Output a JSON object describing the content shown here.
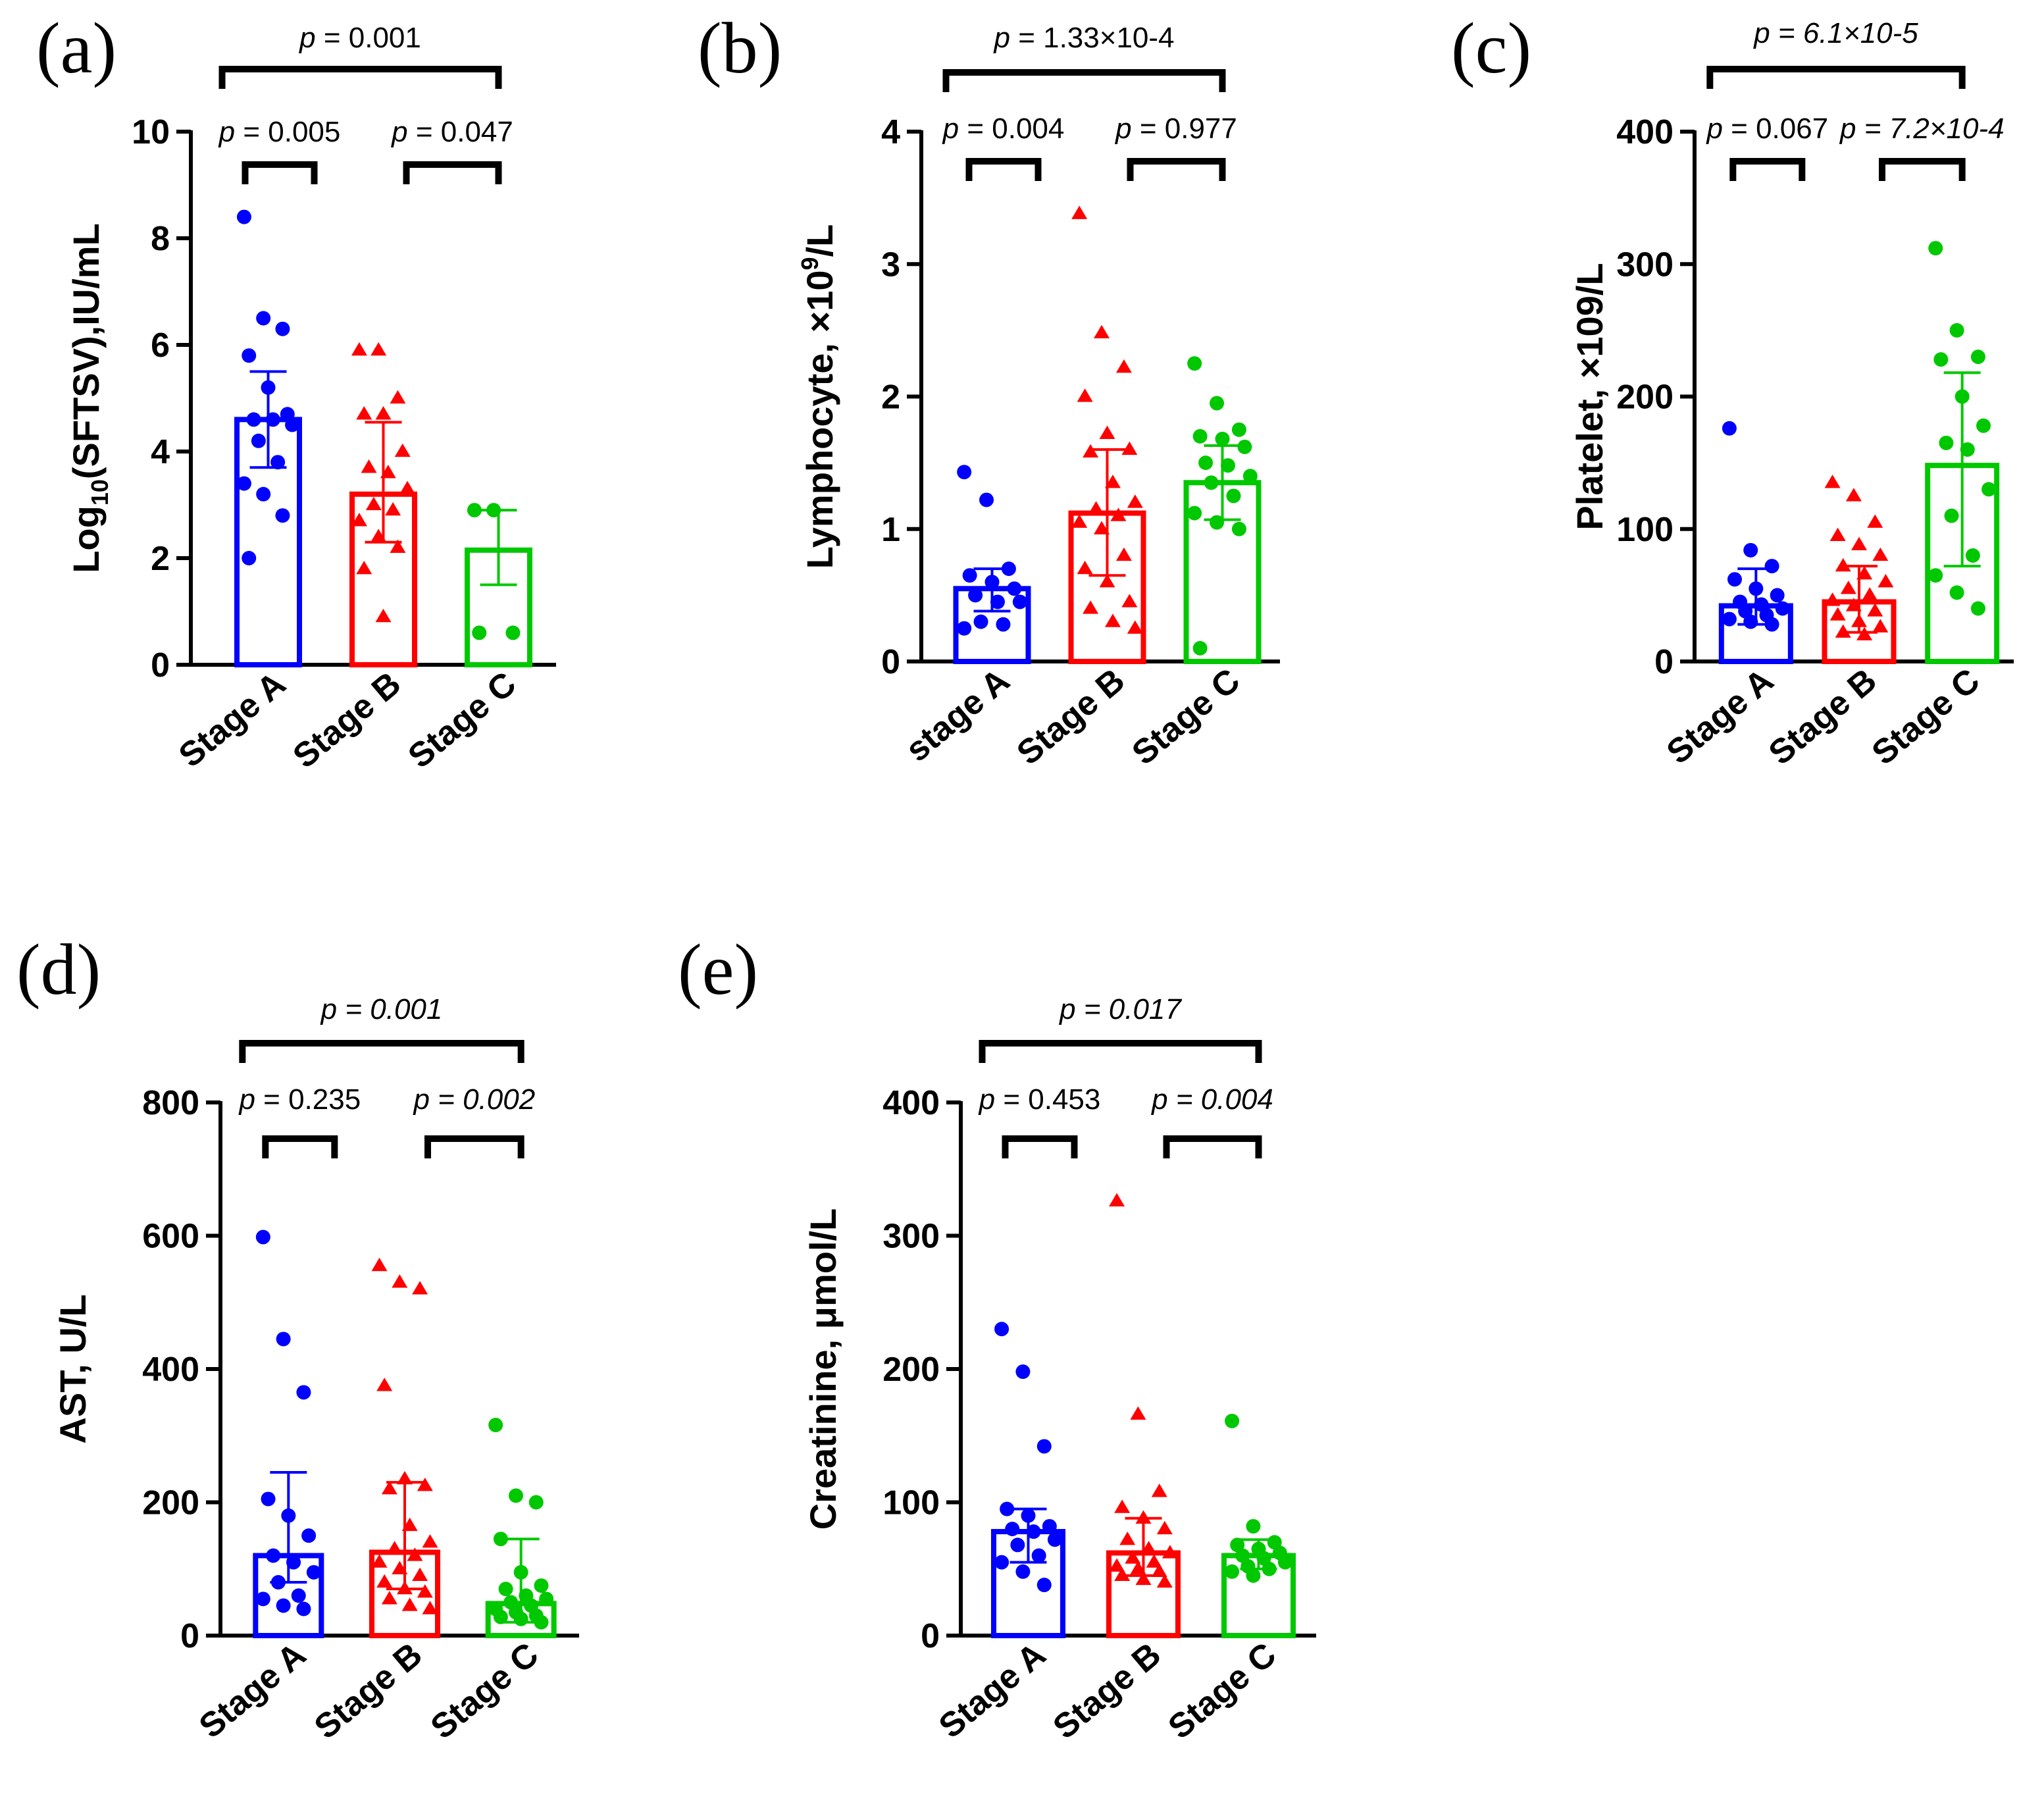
{
  "figure": {
    "description_color_legend": {
      "stage_a": "#0000ff",
      "stage_b": "#ff0000",
      "stage_c": "#00c800"
    }
  },
  "chart_data": [
    {
      "id": "a",
      "type": "bar",
      "panel_label": "(a)",
      "ylabel_parts": [
        "Log",
        "10",
        "(SFTSV),IU/mL"
      ],
      "ylim": [
        0,
        10
      ],
      "yticks": [
        "0",
        "2",
        "4",
        "6",
        "8",
        "10"
      ],
      "categories": [
        "Stage A",
        "Stage B",
        "Stage C"
      ],
      "markers": [
        "circle",
        "triangle",
        "circle"
      ],
      "colors": [
        "#0000ff",
        "#ff0000",
        "#00c800"
      ],
      "bar_means": [
        4.6,
        3.2,
        2.15
      ],
      "error_bars": [
        [
          3.7,
          5.5
        ],
        [
          2.3,
          4.55
        ],
        [
          1.5,
          2.9
        ]
      ],
      "points": [
        [
          8.4,
          6.5,
          6.3,
          5.8,
          5.2,
          4.7,
          4.6,
          4.6,
          4.5,
          4.2,
          3.8,
          3.4,
          3.2,
          2.8,
          2.0
        ],
        [
          5.9,
          5.9,
          5.0,
          4.7,
          4.7,
          4.0,
          3.7,
          3.6,
          3.3,
          3.0,
          2.9,
          2.7,
          2.4,
          2.2,
          1.8,
          0.9
        ],
        [
          2.9,
          2.9,
          0.6,
          0.6
        ]
      ],
      "comparisons": [
        {
          "label": "p = 0.001",
          "italic": false,
          "from": 0,
          "to": 2,
          "level": "top"
        },
        {
          "label": "p = 0.005",
          "italic": false,
          "from": 0,
          "to": 1,
          "level": "low"
        },
        {
          "label": "p = 0.047",
          "italic": false,
          "from": 1,
          "to": 2,
          "level": "low"
        }
      ]
    },
    {
      "id": "b",
      "type": "bar",
      "panel_label": "(b)",
      "ylabel_parts": [
        "Lymphocyte, ×10",
        "9",
        "/L"
      ],
      "ylim": [
        0,
        4
      ],
      "yticks": [
        "0",
        "1",
        "2",
        "3",
        "4"
      ],
      "categories": [
        "stage A",
        "Stage B",
        "Stage C"
      ],
      "markers": [
        "circle",
        "triangle",
        "circle"
      ],
      "colors": [
        "#0000ff",
        "#ff0000",
        "#00c800"
      ],
      "bar_means": [
        0.55,
        1.12,
        1.35
      ],
      "error_bars": [
        [
          0.38,
          0.7
        ],
        [
          0.65,
          1.6
        ],
        [
          1.07,
          1.63
        ]
      ],
      "points": [
        [
          1.43,
          1.22,
          0.7,
          0.65,
          0.6,
          0.55,
          0.5,
          0.45,
          0.45,
          0.3,
          0.28,
          0.25
        ],
        [
          3.38,
          2.48,
          2.22,
          2.0,
          1.72,
          1.6,
          1.58,
          1.35,
          1.2,
          1.15,
          1.1,
          1.05,
          1.0,
          0.8,
          0.7,
          0.6,
          0.45,
          0.4,
          0.3,
          0.25
        ],
        [
          2.25,
          1.95,
          1.75,
          1.7,
          1.68,
          1.62,
          1.5,
          1.48,
          1.4,
          1.35,
          1.25,
          1.12,
          1.05,
          1.0,
          0.1
        ]
      ],
      "comparisons": [
        {
          "label": "p = 1.33×10-4",
          "italic": false,
          "from": 0,
          "to": 2,
          "level": "top"
        },
        {
          "label": "p = 0.004",
          "italic": false,
          "from": 0,
          "to": 1,
          "level": "low"
        },
        {
          "label": "p = 0.977",
          "italic": false,
          "from": 1,
          "to": 2,
          "level": "low"
        }
      ]
    },
    {
      "id": "c",
      "type": "bar",
      "panel_label": "(c)",
      "ylabel_parts": [
        "Platelet, ×109/L",
        "",
        ""
      ],
      "ylim": [
        0,
        400
      ],
      "yticks": [
        "0",
        "100",
        "200",
        "300",
        "400"
      ],
      "categories": [
        "Stage A",
        "Stage B",
        "Stage C"
      ],
      "markers": [
        "circle",
        "triangle",
        "circle"
      ],
      "colors": [
        "#0000ff",
        "#ff0000",
        "#00c800"
      ],
      "bar_means": [
        42,
        45,
        148
      ],
      "error_bars": [
        [
          28,
          70
        ],
        [
          22,
          72
        ],
        [
          72,
          218
        ]
      ],
      "points": [
        [
          176,
          84,
          72,
          62,
          55,
          50,
          45,
          43,
          40,
          38,
          35,
          32,
          30,
          28
        ],
        [
          135,
          125,
          105,
          95,
          88,
          80,
          72,
          66,
          60,
          55,
          50,
          46,
          42,
          38,
          35,
          30,
          26,
          22,
          20
        ],
        [
          312,
          250,
          230,
          228,
          200,
          178,
          165,
          160,
          130,
          110,
          80,
          65,
          52,
          40
        ]
      ],
      "comparisons": [
        {
          "label": "p = 6.1×10-5",
          "italic": true,
          "from": 0,
          "to": 2,
          "level": "top"
        },
        {
          "label": "p = 0.067",
          "italic": false,
          "from": 0,
          "to": 1,
          "level": "low"
        },
        {
          "label": "p = 7.2×10-4",
          "italic": true,
          "from": 1,
          "to": 2,
          "level": "low"
        }
      ]
    },
    {
      "id": "d",
      "type": "bar",
      "panel_label": "(d)",
      "ylabel_parts": [
        "AST, U/L",
        "",
        ""
      ],
      "ylim": [
        0,
        800
      ],
      "yticks": [
        "0",
        "200",
        "400",
        "600",
        "800"
      ],
      "categories": [
        "Stage A",
        "Stage B",
        "Stage C"
      ],
      "markers": [
        "circle",
        "triangle",
        "circle"
      ],
      "colors": [
        "#0000ff",
        "#ff0000",
        "#00c800"
      ],
      "bar_means": [
        120,
        125,
        48
      ],
      "error_bars": [
        [
          80,
          245
        ],
        [
          70,
          230
        ],
        [
          20,
          145
        ]
      ],
      "points": [
        [
          598,
          445,
          365,
          205,
          180,
          150,
          120,
          110,
          95,
          80,
          60,
          55,
          45,
          40
        ],
        [
          555,
          530,
          520,
          375,
          235,
          225,
          220,
          165,
          140,
          130,
          120,
          110,
          100,
          90,
          80,
          70,
          65,
          55,
          45,
          40
        ],
        [
          316,
          210,
          200,
          145,
          95,
          75,
          70,
          60,
          55,
          50,
          45,
          40,
          35,
          30,
          28,
          25,
          20
        ]
      ],
      "comparisons": [
        {
          "label": "p = 0.001",
          "italic": true,
          "from": 0,
          "to": 2,
          "level": "top"
        },
        {
          "label": "p = 0.235",
          "italic": false,
          "from": 0,
          "to": 1,
          "level": "low"
        },
        {
          "label": "p = 0.002",
          "italic": true,
          "from": 1,
          "to": 2,
          "level": "low"
        }
      ]
    },
    {
      "id": "e",
      "type": "bar",
      "panel_label": "(e)",
      "ylabel_parts": [
        "Creatinine, μmol/L",
        "",
        ""
      ],
      "ylim": [
        0,
        400
      ],
      "yticks": [
        "0",
        "100",
        "200",
        "300",
        "400"
      ],
      "categories": [
        "Stage A",
        "Stage B",
        "Stage C"
      ],
      "markers": [
        "circle",
        "triangle",
        "circle"
      ],
      "colors": [
        "#0000ff",
        "#ff0000",
        "#00c800"
      ],
      "bar_means": [
        78,
        62,
        60
      ],
      "error_bars": [
        [
          55,
          95
        ],
        [
          45,
          88
        ],
        [
          50,
          72
        ]
      ],
      "points": [
        [
          230,
          198,
          142,
          95,
          90,
          82,
          80,
          78,
          72,
          68,
          60,
          55,
          48,
          38
        ],
        [
          326,
          166,
          108,
          96,
          88,
          80,
          72,
          65,
          62,
          58,
          55,
          52,
          50,
          48,
          45,
          42,
          40
        ],
        [
          161,
          82,
          70,
          68,
          65,
          62,
          60,
          58,
          55,
          52,
          50,
          48,
          45
        ]
      ],
      "comparisons": [
        {
          "label": "p = 0.017",
          "italic": true,
          "from": 0,
          "to": 2,
          "level": "top"
        },
        {
          "label": "p = 0.453",
          "italic": false,
          "from": 0,
          "to": 1,
          "level": "low"
        },
        {
          "label": "p = 0.004",
          "italic": true,
          "from": 1,
          "to": 2,
          "level": "low"
        }
      ]
    }
  ]
}
